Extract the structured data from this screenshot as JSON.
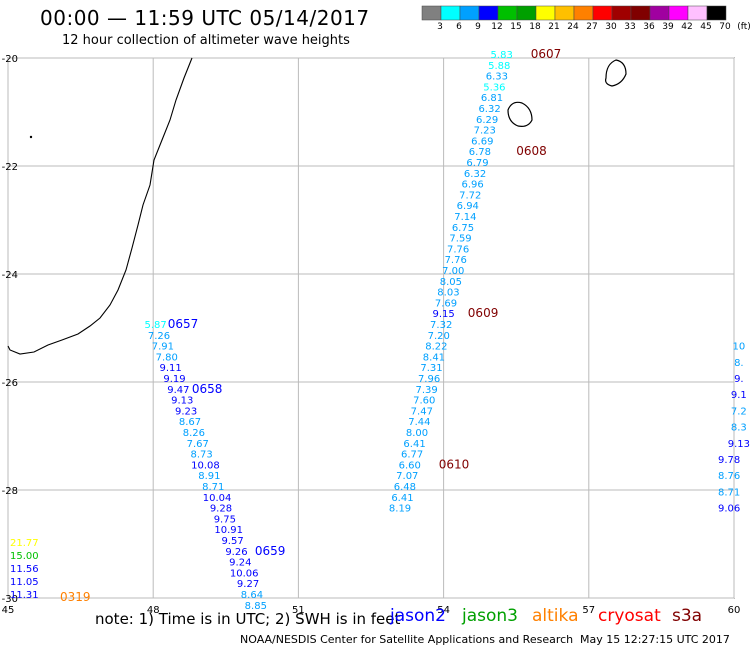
{
  "header": {
    "title": "00:00 — 11:59 UTC 05/14/2017",
    "subtitle": "12 hour collection of altimeter wave heights"
  },
  "legend": {
    "colors": [
      "#808080",
      "#00ffff",
      "#00a0ff",
      "#0000ff",
      "#00c000",
      "#00a000",
      "#ffff00",
      "#ffc000",
      "#ff8000",
      "#ff0000",
      "#a00000",
      "#800000",
      "#a000a0",
      "#ff00ff",
      "#ffc0ff",
      "#000000"
    ],
    "labels": [
      "3",
      "6",
      "9",
      "12",
      "15",
      "18",
      "21",
      "24",
      "27",
      "30",
      "33",
      "36",
      "39",
      "42",
      "45",
      "70",
      "(ft)"
    ]
  },
  "map": {
    "lon_range": [
      45,
      60
    ],
    "lat_range": [
      -20,
      -30
    ],
    "lon_ticks": [
      "45",
      "48",
      "51",
      "54",
      "57",
      "60"
    ],
    "lat_ticks": [
      "-20",
      "-22",
      "-24",
      "-26",
      "-28",
      "-30"
    ]
  },
  "tracks": [
    {
      "satellite": "jason2",
      "color": "#000000",
      "points": [
        {
          "lon": 48.05,
          "lat": -25.0,
          "v": "5.87",
          "c": "#00ffff"
        },
        {
          "lon": 48.12,
          "lat": -25.2,
          "v": "7.26",
          "c": "#00a0ff"
        },
        {
          "lon": 48.2,
          "lat": -25.4,
          "v": "7.91",
          "c": "#00a0ff"
        },
        {
          "lon": 48.28,
          "lat": -25.6,
          "v": "7.80",
          "c": "#00a0ff"
        },
        {
          "lon": 48.36,
          "lat": -25.8,
          "v": "9.11",
          "c": "#0000ff"
        },
        {
          "lon": 48.44,
          "lat": -26.0,
          "v": "9.19",
          "c": "#0000ff"
        },
        {
          "lon": 48.52,
          "lat": -26.2,
          "v": "9.47",
          "c": "#0000ff"
        },
        {
          "lon": 48.6,
          "lat": -26.4,
          "v": "9.13",
          "c": "#0000ff"
        },
        {
          "lon": 48.68,
          "lat": -26.6,
          "v": "9.23",
          "c": "#0000ff"
        },
        {
          "lon": 48.76,
          "lat": -26.8,
          "v": "8.67",
          "c": "#00a0ff"
        },
        {
          "lon": 48.84,
          "lat": -27.0,
          "v": "8.26",
          "c": "#00a0ff"
        },
        {
          "lon": 48.92,
          "lat": -27.2,
          "v": "7.67",
          "c": "#00a0ff"
        },
        {
          "lon": 49.0,
          "lat": -27.4,
          "v": "8.73",
          "c": "#00a0ff"
        },
        {
          "lon": 49.08,
          "lat": -27.6,
          "v": "10.08",
          "c": "#0000ff"
        },
        {
          "lon": 49.16,
          "lat": -27.8,
          "v": "8.91",
          "c": "#00a0ff"
        },
        {
          "lon": 49.24,
          "lat": -28.0,
          "v": "8.71",
          "c": "#00a0ff"
        },
        {
          "lon": 49.32,
          "lat": -28.2,
          "v": "10.04",
          "c": "#0000ff"
        },
        {
          "lon": 49.4,
          "lat": -28.4,
          "v": "9.28",
          "c": "#0000ff"
        },
        {
          "lon": 49.48,
          "lat": -28.6,
          "v": "9.75",
          "c": "#0000ff"
        },
        {
          "lon": 49.56,
          "lat": -28.8,
          "v": "10.91",
          "c": "#0000ff"
        },
        {
          "lon": 49.64,
          "lat": -29.0,
          "v": "9.57",
          "c": "#0000ff"
        },
        {
          "lon": 49.72,
          "lat": -29.2,
          "v": "9.26",
          "c": "#0000ff"
        },
        {
          "lon": 49.8,
          "lat": -29.4,
          "v": "9.24",
          "c": "#0000ff"
        },
        {
          "lon": 49.88,
          "lat": -29.6,
          "v": "10.06",
          "c": "#0000ff"
        },
        {
          "lon": 49.96,
          "lat": -29.8,
          "v": "9.27",
          "c": "#0000ff"
        },
        {
          "lon": 50.04,
          "lat": -30.0,
          "v": "8.64",
          "c": "#00a0ff"
        },
        {
          "lon": 50.12,
          "lat": -30.2,
          "v": "8.85",
          "c": "#00a0ff"
        }
      ],
      "times": [
        {
          "t": "0657",
          "lon": 48.3,
          "lat": -25.0,
          "c": "#0000ff"
        },
        {
          "t": "0658",
          "lon": 48.8,
          "lat": -26.2,
          "c": "#0000ff"
        },
        {
          "t": "0659",
          "lon": 50.1,
          "lat": -29.2,
          "c": "#0000ff"
        }
      ]
    },
    {
      "satellite": "s3a",
      "color": "#000000",
      "points": [
        {
          "lon": 55.2,
          "lat": -20.0,
          "v": "5.83",
          "c": "#00ffff"
        },
        {
          "lon": 55.15,
          "lat": -20.2,
          "v": "5.88",
          "c": "#00ffff"
        },
        {
          "lon": 55.1,
          "lat": -20.4,
          "v": "6.33",
          "c": "#00a0ff"
        },
        {
          "lon": 55.05,
          "lat": -20.6,
          "v": "5.36",
          "c": "#00ffff"
        },
        {
          "lon": 55.0,
          "lat": -20.8,
          "v": "6.81",
          "c": "#00a0ff"
        },
        {
          "lon": 54.95,
          "lat": -21.0,
          "v": "6.32",
          "c": "#00a0ff"
        },
        {
          "lon": 54.9,
          "lat": -21.2,
          "v": "6.29",
          "c": "#00a0ff"
        },
        {
          "lon": 54.85,
          "lat": -21.4,
          "v": "7.23",
          "c": "#00a0ff"
        },
        {
          "lon": 54.8,
          "lat": -21.6,
          "v": "6.69",
          "c": "#00a0ff"
        },
        {
          "lon": 54.75,
          "lat": -21.8,
          "v": "6.78",
          "c": "#00a0ff"
        },
        {
          "lon": 54.7,
          "lat": -22.0,
          "v": "6.79",
          "c": "#00a0ff"
        },
        {
          "lon": 54.65,
          "lat": -22.2,
          "v": "6.32",
          "c": "#00a0ff"
        },
        {
          "lon": 54.6,
          "lat": -22.4,
          "v": "6.96",
          "c": "#00a0ff"
        },
        {
          "lon": 54.55,
          "lat": -22.6,
          "v": "7.72",
          "c": "#00a0ff"
        },
        {
          "lon": 54.5,
          "lat": -22.8,
          "v": "6.94",
          "c": "#00a0ff"
        },
        {
          "lon": 54.45,
          "lat": -23.0,
          "v": "7.14",
          "c": "#00a0ff"
        },
        {
          "lon": 54.4,
          "lat": -23.2,
          "v": "6.75",
          "c": "#00a0ff"
        },
        {
          "lon": 54.35,
          "lat": -23.4,
          "v": "7.59",
          "c": "#00a0ff"
        },
        {
          "lon": 54.3,
          "lat": -23.6,
          "v": "7.76",
          "c": "#00a0ff"
        },
        {
          "lon": 54.25,
          "lat": -23.8,
          "v": "7.76",
          "c": "#00a0ff"
        },
        {
          "lon": 54.2,
          "lat": -24.0,
          "v": "7.00",
          "c": "#00a0ff"
        },
        {
          "lon": 54.15,
          "lat": -24.2,
          "v": "8.05",
          "c": "#00a0ff"
        },
        {
          "lon": 54.1,
          "lat": -24.4,
          "v": "8.03",
          "c": "#00a0ff"
        },
        {
          "lon": 54.05,
          "lat": -24.6,
          "v": "7.69",
          "c": "#00a0ff"
        },
        {
          "lon": 54.0,
          "lat": -24.8,
          "v": "9.15",
          "c": "#0000ff"
        },
        {
          "lon": 53.95,
          "lat": -25.0,
          "v": "7.32",
          "c": "#00a0ff"
        },
        {
          "lon": 53.9,
          "lat": -25.2,
          "v": "7.20",
          "c": "#00a0ff"
        },
        {
          "lon": 53.85,
          "lat": -25.4,
          "v": "8.22",
          "c": "#00a0ff"
        },
        {
          "lon": 53.8,
          "lat": -25.6,
          "v": "8.41",
          "c": "#00a0ff"
        },
        {
          "lon": 53.75,
          "lat": -25.8,
          "v": "7.31",
          "c": "#00a0ff"
        },
        {
          "lon": 53.7,
          "lat": -26.0,
          "v": "7.96",
          "c": "#00a0ff"
        },
        {
          "lon": 53.65,
          "lat": -26.2,
          "v": "7.39",
          "c": "#00a0ff"
        },
        {
          "lon": 53.6,
          "lat": -26.4,
          "v": "7.60",
          "c": "#00a0ff"
        },
        {
          "lon": 53.55,
          "lat": -26.6,
          "v": "7.47",
          "c": "#00a0ff"
        },
        {
          "lon": 53.5,
          "lat": -26.8,
          "v": "7.44",
          "c": "#00a0ff"
        },
        {
          "lon": 53.45,
          "lat": -27.0,
          "v": "8.00",
          "c": "#00a0ff"
        },
        {
          "lon": 53.4,
          "lat": -27.2,
          "v": "6.41",
          "c": "#00a0ff"
        },
        {
          "lon": 53.35,
          "lat": -27.4,
          "v": "6.77",
          "c": "#00a0ff"
        },
        {
          "lon": 53.3,
          "lat": -27.6,
          "v": "6.60",
          "c": "#00a0ff"
        },
        {
          "lon": 53.25,
          "lat": -27.8,
          "v": "7.07",
          "c": "#00a0ff"
        },
        {
          "lon": 53.2,
          "lat": -28.0,
          "v": "6.48",
          "c": "#00a0ff"
        },
        {
          "lon": 53.15,
          "lat": -28.2,
          "v": "6.41",
          "c": "#00a0ff"
        },
        {
          "lon": 53.1,
          "lat": -28.4,
          "v": "8.19",
          "c": "#00a0ff"
        }
      ],
      "times": [
        {
          "t": "0607",
          "lon": 55.8,
          "lat": -20.0,
          "c": "#800000"
        },
        {
          "t": "0608",
          "lon": 55.5,
          "lat": -21.8,
          "c": "#800000"
        },
        {
          "t": "0609",
          "lon": 54.5,
          "lat": -24.8,
          "c": "#800000"
        },
        {
          "t": "0610",
          "lon": 53.9,
          "lat": -27.6,
          "c": "#800000"
        }
      ]
    },
    {
      "satellite": "right-edge",
      "color": "#000000",
      "points": [
        {
          "lon": 60.1,
          "lat": -25.4,
          "v": "10",
          "c": "#00a0ff"
        },
        {
          "lon": 60.1,
          "lat": -25.7,
          "v": "8.",
          "c": "#00a0ff"
        },
        {
          "lon": 60.1,
          "lat": -26.0,
          "v": "9.",
          "c": "#0000ff"
        },
        {
          "lon": 60.1,
          "lat": -26.3,
          "v": "9.1",
          "c": "#0000ff"
        },
        {
          "lon": 60.1,
          "lat": -26.6,
          "v": "7.2",
          "c": "#00a0ff"
        },
        {
          "lon": 60.1,
          "lat": -26.9,
          "v": "8.3",
          "c": "#00a0ff"
        },
        {
          "lon": 60.1,
          "lat": -27.2,
          "v": "9.13",
          "c": "#0000ff"
        },
        {
          "lon": 59.9,
          "lat": -27.5,
          "v": "9.78",
          "c": "#0000ff"
        },
        {
          "lon": 59.9,
          "lat": -27.8,
          "v": "8.76",
          "c": "#00a0ff"
        },
        {
          "lon": 59.9,
          "lat": -28.1,
          "v": "8.71",
          "c": "#00a0ff"
        },
        {
          "lon": 59.9,
          "lat": -28.4,
          "v": "9.06",
          "c": "#0000ff"
        }
      ],
      "times": []
    }
  ],
  "left_points": [
    {
      "v": "21.77",
      "c": "#ffff00"
    },
    {
      "v": "15.00",
      "c": "#00c000"
    },
    {
      "v": "11.56",
      "c": "#0000ff"
    },
    {
      "v": "11.05",
      "c": "#0000ff"
    },
    {
      "v": "11.31",
      "c": "#0000ff"
    }
  ],
  "left_time": {
    "t": "0319",
    "c": "#ff8000"
  },
  "footer": {
    "note": "note: 1) Time is in UTC; 2) SWH is in feet",
    "satellites": [
      {
        "name": "jason2",
        "color": "#0000ff"
      },
      {
        "name": "jason3",
        "color": "#00a000"
      },
      {
        "name": "altika",
        "color": "#ff8000"
      },
      {
        "name": "cryosat",
        "color": "#ff0000"
      },
      {
        "name": "s3a",
        "color": "#800000"
      }
    ],
    "credit": "NOAA/NESDIS Center for Satellite Applications and Research",
    "timestamp": "May 15 12:27:15 UTC 2017"
  }
}
